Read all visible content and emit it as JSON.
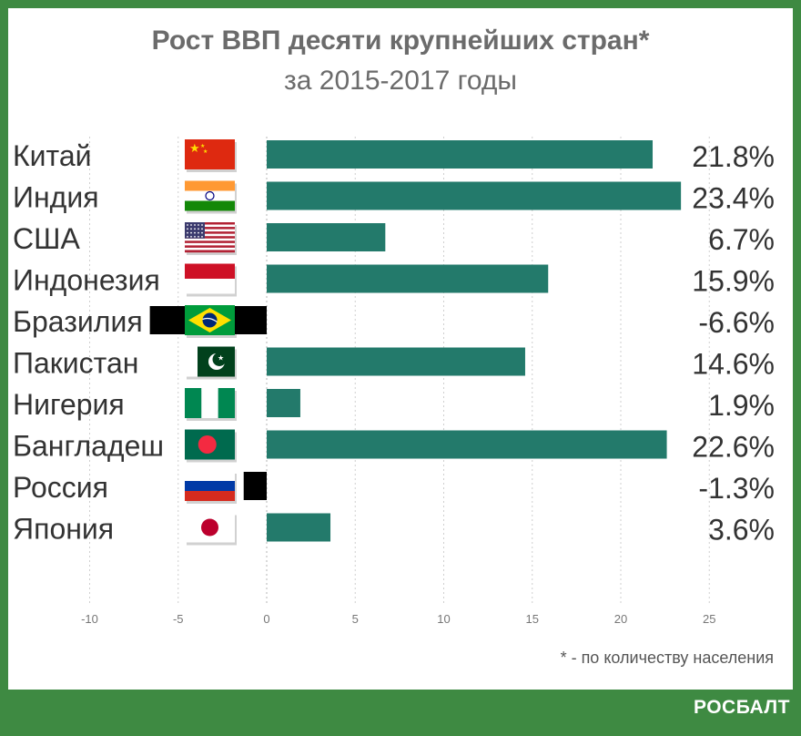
{
  "chart_data": {
    "type": "bar",
    "orientation": "horizontal",
    "title": "Рост ВВП десяти крупнейших стран*",
    "subtitle": "за 2015-2017 годы",
    "categories": [
      "Китай",
      "Индия",
      "США",
      "Индонезия",
      "Бразилия",
      "Пакистан",
      "Нигерия",
      "Бангладеш",
      "Россия",
      "Япония"
    ],
    "values": [
      21.8,
      23.4,
      6.7,
      15.9,
      -6.6,
      14.6,
      1.9,
      22.6,
      -1.3,
      3.6
    ],
    "value_labels": [
      "21.8%",
      "23.4%",
      "6.7%",
      "15.9%",
      "-6.6%",
      "14.6%",
      "1.9%",
      "22.6%",
      "-1.3%",
      "3.6%"
    ],
    "flags": [
      "china-flag-icon",
      "india-flag-icon",
      "usa-flag-icon",
      "indonesia-flag-icon",
      "brazil-flag-icon",
      "pakistan-flag-icon",
      "nigeria-flag-icon",
      "bangladesh-flag-icon",
      "russia-flag-icon",
      "japan-flag-icon"
    ],
    "xlim": [
      -10,
      25
    ],
    "xticks": [
      -10,
      -5,
      0,
      5,
      10,
      15,
      20,
      25
    ],
    "xtick_labels": [
      "-10",
      "-5",
      "0",
      "5",
      "10",
      "15",
      "20",
      "25"
    ],
    "grid": "vertical dotted",
    "colors": {
      "positive": "#237a6b",
      "negative": "#000000",
      "background": "#3e8a42"
    }
  },
  "footnote": "* - по количеству населения",
  "brand": "РОСБАЛТ"
}
